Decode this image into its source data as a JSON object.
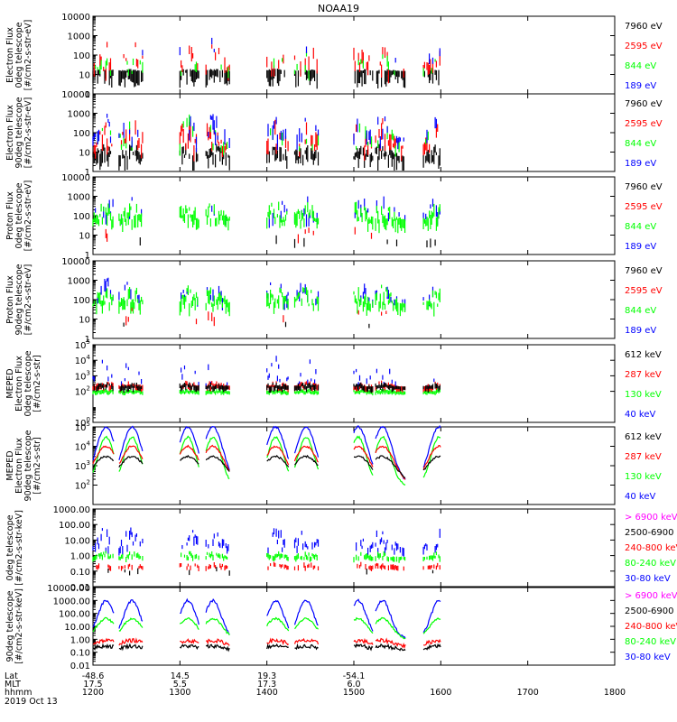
{
  "title": "NOAA19",
  "colors": {
    "black": "#000000",
    "red": "#ff0000",
    "green": "#00ff00",
    "blue": "#0000ff",
    "magenta": "#ff00ff"
  },
  "chart_data": [
    {
      "type": "scatter",
      "ylabel": [
        "Electron Flux",
        "0deg telescope",
        "[#/cm2-s-str-eV]"
      ],
      "log": true,
      "ylim": [
        1,
        10000
      ],
      "yticks": [
        "1",
        "10",
        "100",
        "1000",
        "10000"
      ],
      "legend": [
        {
          "text": "7960 eV",
          "color": "black"
        },
        {
          "text": "2595 eV",
          "color": "red"
        },
        {
          "text": "844 eV",
          "color": "green"
        },
        {
          "text": "189 eV",
          "color": "blue"
        }
      ],
      "series": [
        {
          "color": "black",
          "base": 15,
          "spread": 1.4,
          "peak": 20,
          "density": 0.72
        },
        {
          "color": "red",
          "base": 20,
          "spread": 1.2,
          "peak": 700,
          "density": 0.4
        },
        {
          "color": "green",
          "base": 15,
          "spread": 0.8,
          "peak": 200,
          "density": 0.15
        },
        {
          "color": "blue",
          "base": 40,
          "spread": 0.8,
          "peak": 1000,
          "density": 0.05
        }
      ]
    },
    {
      "type": "scatter",
      "ylabel": [
        "Electron Flux",
        "90deg telescope",
        "[#/cm2-s-str-eV]"
      ],
      "log": true,
      "ylim": [
        1,
        10000
      ],
      "yticks": [
        "1",
        "10",
        "100",
        "1000",
        "10000"
      ],
      "legend": [
        {
          "text": "7960 eV",
          "color": "black"
        },
        {
          "text": "2595 eV",
          "color": "red"
        },
        {
          "text": "844 eV",
          "color": "green"
        },
        {
          "text": "189 eV",
          "color": "blue"
        }
      ],
      "series": [
        {
          "color": "black",
          "base": 6,
          "spread": 1.4,
          "peak": 30,
          "density": 0.8
        },
        {
          "color": "red",
          "base": 20,
          "spread": 1.3,
          "peak": 600,
          "density": 0.5
        },
        {
          "color": "green",
          "base": 20,
          "spread": 1.0,
          "peak": 1000,
          "density": 0.2
        },
        {
          "color": "blue",
          "base": 50,
          "spread": 1.2,
          "peak": 1000,
          "density": 0.35
        }
      ]
    },
    {
      "type": "scatter",
      "ylabel": [
        "Proton Flux",
        "0deg telescope",
        "[#/cm2-s-str-eV]"
      ],
      "log": true,
      "ylim": [
        1,
        10000
      ],
      "yticks": [
        "1",
        "10",
        "100",
        "1000",
        "10000"
      ],
      "legend": [
        {
          "text": "7960 eV",
          "color": "black"
        },
        {
          "text": "2595 eV",
          "color": "red"
        },
        {
          "text": "844 eV",
          "color": "green"
        },
        {
          "text": "189 eV",
          "color": "blue"
        }
      ],
      "series": [
        {
          "color": "black",
          "base": 5,
          "spread": 0.6,
          "peak": 10,
          "density": 0.04
        },
        {
          "color": "red",
          "base": 10,
          "spread": 0.6,
          "peak": 50,
          "density": 0.03
        },
        {
          "color": "blue",
          "base": 100,
          "spread": 1.0,
          "peak": 1500,
          "density": 0.25
        },
        {
          "color": "green",
          "base": 60,
          "spread": 1.1,
          "peak": 600,
          "density": 0.9
        }
      ]
    },
    {
      "type": "scatter",
      "ylabel": [
        "Proton Flux",
        "90deg telescope",
        "[#/cm2-s-str-eV]"
      ],
      "log": true,
      "ylim": [
        1,
        10000
      ],
      "yticks": [
        "1",
        "10",
        "100",
        "1000",
        "10000"
      ],
      "legend": [
        {
          "text": "7960 eV",
          "color": "black"
        },
        {
          "text": "2595 eV",
          "color": "red"
        },
        {
          "text": "844 eV",
          "color": "green"
        },
        {
          "text": "189 eV",
          "color": "blue"
        }
      ],
      "series": [
        {
          "color": "black",
          "base": 5,
          "spread": 0.6,
          "peak": 10,
          "density": 0.03
        },
        {
          "color": "red",
          "base": 10,
          "spread": 0.6,
          "peak": 50,
          "density": 0.03
        },
        {
          "color": "blue",
          "base": 100,
          "spread": 1.0,
          "peak": 1500,
          "density": 0.3
        },
        {
          "color": "green",
          "base": 60,
          "spread": 1.1,
          "peak": 600,
          "density": 0.9
        }
      ]
    },
    {
      "type": "scatter",
      "ylabel": [
        "MEPED",
        "Electron Flux",
        "0deg telescope",
        "[#/cm2-s-str]"
      ],
      "log": true,
      "ylim": [
        1,
        100000
      ],
      "yticks": [
        "10^0",
        "10^2",
        "10^3",
        "10^4",
        "10^5"
      ],
      "legend": [
        {
          "text": "612 keV",
          "color": "black"
        },
        {
          "text": "287 keV",
          "color": "red"
        },
        {
          "text": "130 keV",
          "color": "green"
        },
        {
          "text": "40 keV",
          "color": "blue"
        }
      ],
      "series": [
        {
          "color": "green",
          "base": 100,
          "spread": 0.15,
          "peak": 150,
          "density": 1.0
        },
        {
          "color": "blue",
          "base": 250,
          "spread": 0.3,
          "peak": 20000,
          "density": 0.3
        },
        {
          "color": "red",
          "base": 200,
          "spread": 0.3,
          "peak": 500,
          "density": 0.9
        },
        {
          "color": "black",
          "base": 200,
          "spread": 0.35,
          "peak": 400,
          "density": 0.9
        }
      ]
    },
    {
      "type": "line",
      "ylabel": [
        "MEPED",
        "Electron Flux",
        "90deg telescope",
        "[#/cm2-s-str]"
      ],
      "log": true,
      "ylim": [
        10,
        100000
      ],
      "yticks": [
        "10^2",
        "10^3",
        "10^4",
        "10^5"
      ],
      "legend": [
        {
          "text": "612 keV",
          "color": "black"
        },
        {
          "text": "287 keV",
          "color": "red"
        },
        {
          "text": "130 keV",
          "color": "green"
        },
        {
          "text": "40 keV",
          "color": "blue"
        }
      ],
      "series": [
        {
          "color": "green",
          "base": 100,
          "spread": 0.1,
          "peak": 30000,
          "density": 1.0
        },
        {
          "color": "blue",
          "base": 120,
          "spread": 0.1,
          "peak": 100000,
          "density": 1.0
        },
        {
          "color": "red",
          "base": 100,
          "spread": 0.1,
          "peak": 10000,
          "density": 1.0
        },
        {
          "color": "black",
          "base": 100,
          "spread": 0.1,
          "peak": 3000,
          "density": 1.0
        }
      ]
    },
    {
      "type": "scatter",
      "ylabel": [
        "0deg telescope",
        "[#/cm2-s-str-keV]"
      ],
      "log": true,
      "ylim": [
        0.01,
        1000
      ],
      "yticks": [
        "0.01",
        "0.10",
        "1.00",
        "10.00",
        "100.00",
        "1000.00"
      ],
      "legend": [
        {
          "text": "> 6900 keV",
          "color": "magenta"
        },
        {
          "text": "2500-6900",
          "color": "black"
        },
        {
          "text": "240-800 keV",
          "color": "red"
        },
        {
          "text": "80-240 keV",
          "color": "green"
        },
        {
          "text": "30-80 keV",
          "color": "blue"
        }
      ],
      "series": [
        {
          "color": "blue",
          "base": 3,
          "spread": 0.6,
          "peak": 80,
          "density": 0.6
        },
        {
          "color": "green",
          "base": 0.8,
          "spread": 0.3,
          "peak": 2,
          "density": 0.8
        },
        {
          "color": "red",
          "base": 0.2,
          "spread": 0.25,
          "peak": 0.4,
          "density": 0.5
        },
        {
          "color": "black",
          "base": 0.1,
          "spread": 0.3,
          "peak": 0.2,
          "density": 0.03
        }
      ]
    },
    {
      "type": "line",
      "ylabel": [
        "90deg telescope",
        "[#/cm2-s-str-keV]"
      ],
      "log": true,
      "ylim": [
        0.01,
        10000
      ],
      "yticks": [
        "0.01",
        "0.10",
        "1.00",
        "10.00",
        "100.00",
        "1000.00",
        "10000.00"
      ],
      "legend": [
        {
          "text": "> 6900 keV",
          "color": "magenta"
        },
        {
          "text": "2500-6900",
          "color": "black"
        },
        {
          "text": "240-800 keV",
          "color": "red"
        },
        {
          "text": "80-240 keV",
          "color": "green"
        },
        {
          "text": "30-80 keV",
          "color": "blue"
        }
      ],
      "series": [
        {
          "color": "blue",
          "base": 1.2,
          "spread": 0.2,
          "peak": 1000,
          "density": 1.0
        },
        {
          "color": "green",
          "base": 0.8,
          "spread": 0.15,
          "peak": 40,
          "density": 1.0
        },
        {
          "color": "red",
          "base": 0.25,
          "spread": 0.3,
          "peak": 0.8,
          "density": 0.6
        },
        {
          "color": "black",
          "base": 0.1,
          "spread": 0.3,
          "peak": 0.3,
          "density": 0.06
        }
      ]
    }
  ],
  "passes": [
    {
      "start": 1200,
      "end": 1224,
      "peak": 1215
    },
    {
      "start": 1230,
      "end": 1258,
      "peak": 1245
    },
    {
      "start": 1300,
      "end": 1322,
      "peak": 1309
    },
    {
      "start": 1330,
      "end": 1358,
      "peak": 1338
    },
    {
      "start": 1400,
      "end": 1425,
      "peak": 1410
    },
    {
      "start": 1432,
      "end": 1460,
      "peak": 1445
    },
    {
      "start": 1500,
      "end": 1522,
      "peak": 1505
    },
    {
      "start": 1525,
      "end": 1560,
      "peak": 1533
    },
    {
      "start": 1580,
      "end": 1600,
      "peak": 1598
    }
  ],
  "x_axis": {
    "xlim": [
      1200,
      1800
    ],
    "hhmm": [
      "1200",
      "1300",
      "1400",
      "1500",
      "1600",
      "1700",
      "1800"
    ],
    "lat": [
      "-48.6",
      "14.5",
      "19.3",
      "-54.1"
    ],
    "mlt": [
      "17.5",
      "5.5",
      "17.3",
      "6.0"
    ],
    "row_labels": [
      "Lat",
      "MLT",
      "hhmm"
    ],
    "date": "2019 Oct 13"
  }
}
